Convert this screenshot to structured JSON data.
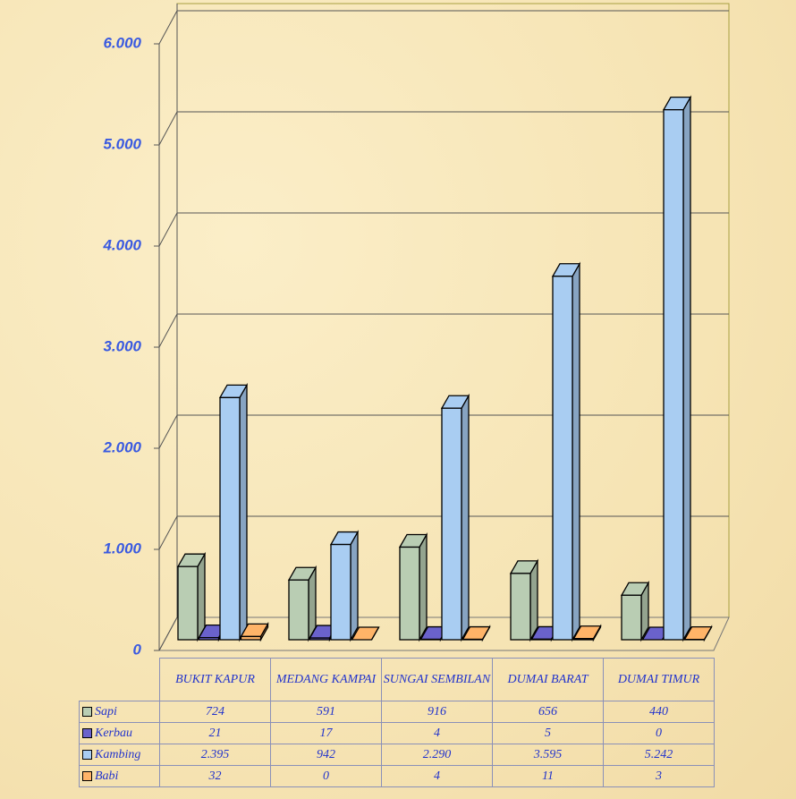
{
  "chart_data": {
    "type": "bar3d",
    "categories": [
      "BUKIT KAPUR",
      "MEDANG KAMPAI",
      "SUNGAI SEMBILAN",
      "DUMAI BARAT",
      "DUMAI TIMUR"
    ],
    "series": [
      {
        "name": "Sapi",
        "color": "#b9cdb3",
        "values": [
          724,
          591,
          916,
          656,
          440
        ]
      },
      {
        "name": "Kerbau",
        "color": "#6a62cc",
        "values": [
          21,
          17,
          4,
          5,
          0
        ]
      },
      {
        "name": "Kambing",
        "color": "#a9cdf2",
        "values": [
          2395,
          942,
          2290,
          3595,
          5242
        ],
        "value_labels": [
          "2.395",
          "942",
          "2.290",
          "3.595",
          "5.242"
        ]
      },
      {
        "name": "Babi",
        "color": "#ffb468",
        "values": [
          32,
          0,
          4,
          11,
          3
        ]
      }
    ],
    "ylim": [
      0,
      6000
    ],
    "yticks": [
      0,
      {
        "value": 1000,
        "label": "1.000"
      },
      {
        "value": 2000,
        "label": "2.000"
      },
      {
        "value": 3000,
        "label": "3.000"
      },
      {
        "value": 4000,
        "label": "4.000"
      },
      {
        "value": 5000,
        "label": "5.000"
      },
      {
        "value": 6000,
        "label": "6.000"
      }
    ],
    "grid": true
  }
}
